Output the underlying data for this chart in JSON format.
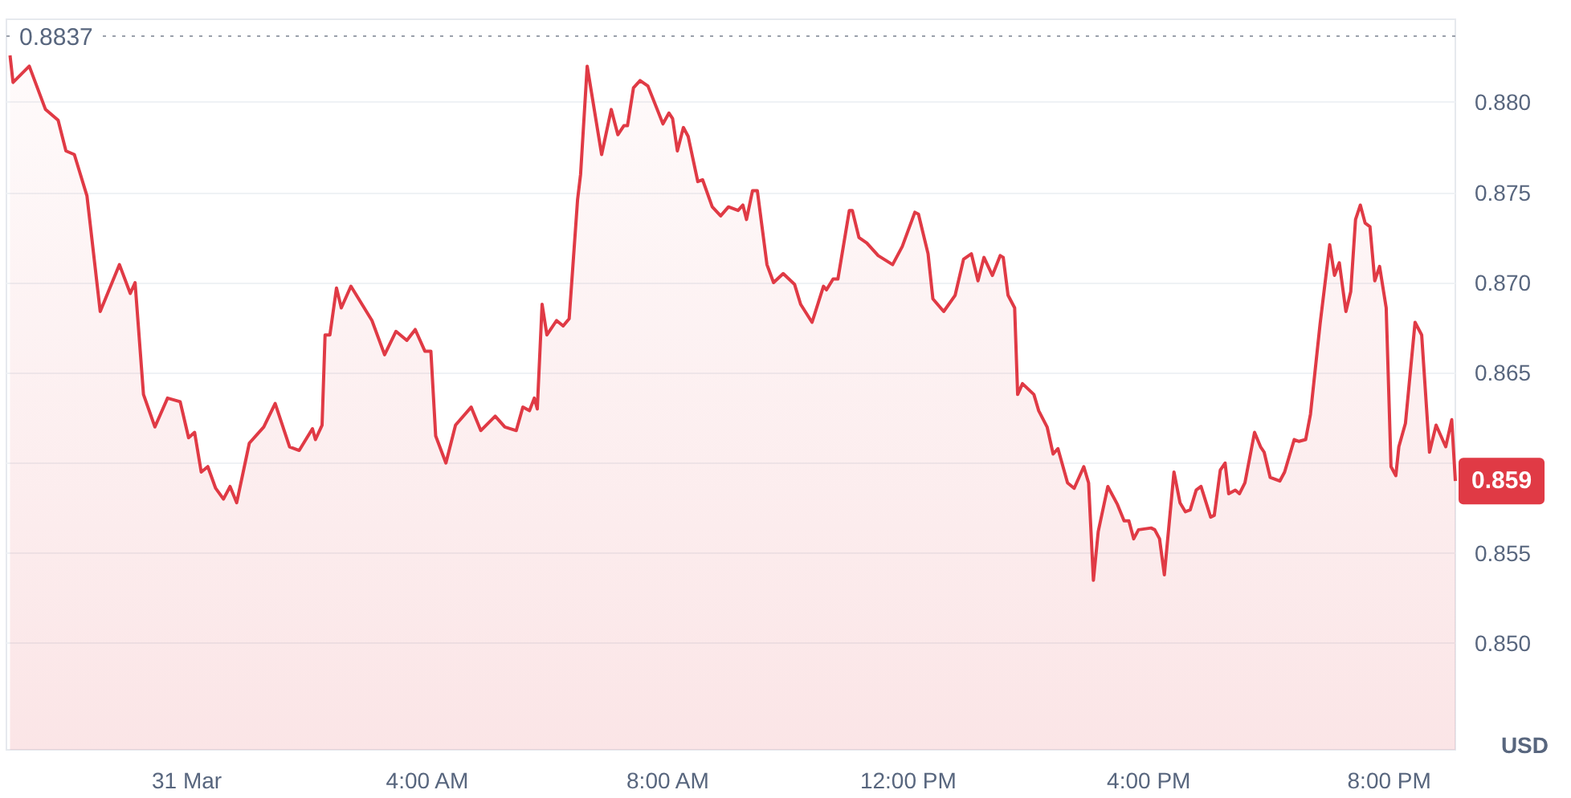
{
  "chart_data": {
    "type": "area",
    "ylabel": "USD",
    "color": "#e03a45",
    "x": [
      -2.94,
      -2.89,
      -2.62,
      -2.35,
      -2.14,
      -2.01,
      -1.87,
      -1.66,
      -1.44,
      -1.12,
      -0.94,
      -0.86,
      -0.72,
      -0.53,
      -0.32,
      -0.11,
      0.03,
      0.13,
      0.24,
      0.35,
      0.48,
      0.61,
      0.72,
      0.83,
      1.04,
      1.28,
      1.47,
      1.71,
      1.87,
      2.09,
      2.14,
      2.25,
      2.3,
      2.38,
      2.49,
      2.57,
      2.73,
      3.08,
      3.29,
      3.48,
      3.66,
      3.8,
      3.96,
      4.06,
      4.14,
      4.31,
      4.47,
      4.73,
      4.89,
      5.13,
      5.29,
      5.48,
      5.59,
      5.7,
      5.78,
      5.83,
      5.91,
      5.99,
      6.15,
      6.26,
      6.36,
      6.5,
      6.55,
      6.66,
      6.9,
      7.06,
      7.17,
      7.27,
      7.33,
      7.43,
      7.54,
      7.67,
      7.92,
      8.02,
      8.08,
      8.16,
      8.26,
      8.34,
      8.5,
      8.58,
      8.74,
      8.88,
      9.01,
      9.17,
      9.25,
      9.31,
      9.41,
      9.49,
      9.65,
      9.76,
      9.92,
      10.11,
      10.21,
      10.4,
      10.59,
      10.64,
      10.75,
      10.83,
      11.02,
      11.07,
      11.18,
      11.31,
      11.5,
      11.74,
      11.9,
      12.11,
      12.17,
      12.33,
      12.41,
      12.59,
      12.78,
      12.92,
      13.05,
      13.16,
      13.26,
      13.4,
      13.53,
      13.58,
      13.66,
      13.77,
      13.82,
      13.9,
      14.09,
      14.17,
      14.31,
      14.41,
      14.49,
      14.65,
      14.76,
      14.92,
      15.0,
      15.08,
      15.16,
      15.32,
      15.48,
      15.59,
      15.67,
      15.75,
      15.83,
      16.04,
      16.1,
      16.18,
      16.26,
      16.42,
      16.52,
      16.61,
      16.69,
      16.79,
      16.87,
      17.03,
      17.09,
      17.19,
      17.27,
      17.33,
      17.44,
      17.51,
      17.6,
      17.76,
      17.86,
      17.92,
      18.02,
      18.18,
      18.26,
      18.42,
      18.5,
      18.61,
      18.69,
      18.85,
      19.01,
      19.09,
      19.17,
      19.28,
      19.36,
      19.44,
      19.52,
      19.6,
      19.68,
      19.76,
      19.84,
      19.95,
      20.03,
      20.11,
      20.16,
      20.27,
      20.43,
      20.54,
      20.67,
      20.78,
      20.94,
      21.04,
      21.1
    ],
    "values": [
      0.8826,
      0.8811,
      0.882,
      0.8796,
      0.879,
      0.8773,
      0.8771,
      0.8748,
      0.8684,
      0.871,
      0.8694,
      0.87,
      0.8638,
      0.862,
      0.8636,
      0.8634,
      0.8614,
      0.8617,
      0.8595,
      0.8598,
      0.8586,
      0.858,
      0.8587,
      0.8578,
      0.8611,
      0.862,
      0.8633,
      0.8609,
      0.8607,
      0.8619,
      0.8613,
      0.8621,
      0.8671,
      0.8671,
      0.8697,
      0.8686,
      0.8698,
      0.8679,
      0.866,
      0.8673,
      0.8668,
      0.8674,
      0.8662,
      0.8662,
      0.8615,
      0.86,
      0.8621,
      0.8631,
      0.8618,
      0.8626,
      0.862,
      0.8618,
      0.8631,
      0.8629,
      0.8636,
      0.863,
      0.8688,
      0.8671,
      0.8679,
      0.8676,
      0.868,
      0.8746,
      0.876,
      0.882,
      0.8771,
      0.8796,
      0.8782,
      0.8787,
      0.8787,
      0.8808,
      0.8812,
      0.8809,
      0.8788,
      0.8794,
      0.8791,
      0.8773,
      0.8786,
      0.8781,
      0.8756,
      0.8757,
      0.8742,
      0.8737,
      0.8742,
      0.874,
      0.8743,
      0.8735,
      0.8751,
      0.8751,
      0.871,
      0.87,
      0.8705,
      0.8699,
      0.8688,
      0.8678,
      0.8698,
      0.8696,
      0.8702,
      0.8702,
      0.874,
      0.874,
      0.8725,
      0.8722,
      0.8715,
      0.871,
      0.872,
      0.8739,
      0.8738,
      0.8716,
      0.8691,
      0.8684,
      0.8693,
      0.8713,
      0.8716,
      0.8701,
      0.8714,
      0.8704,
      0.8715,
      0.8714,
      0.8693,
      0.8686,
      0.8638,
      0.8644,
      0.8638,
      0.8629,
      0.862,
      0.8605,
      0.8608,
      0.8589,
      0.8586,
      0.8598,
      0.8589,
      0.8535,
      0.8562,
      0.8587,
      0.8577,
      0.8568,
      0.8568,
      0.8558,
      0.8563,
      0.8564,
      0.8563,
      0.8558,
      0.8538,
      0.8595,
      0.8578,
      0.8573,
      0.8574,
      0.8585,
      0.8587,
      0.857,
      0.8571,
      0.8596,
      0.86,
      0.8583,
      0.8585,
      0.8583,
      0.8589,
      0.8617,
      0.8609,
      0.8606,
      0.8592,
      0.859,
      0.8595,
      0.8613,
      0.8612,
      0.8613,
      0.8627,
      0.8677,
      0.8721,
      0.8704,
      0.8711,
      0.8684,
      0.8695,
      0.8735,
      0.8743,
      0.8733,
      0.8731,
      0.8701,
      0.8709,
      0.8686,
      0.8598,
      0.8593,
      0.8609,
      0.8622,
      0.8678,
      0.8671,
      0.8606,
      0.8621,
      0.8609,
      0.8624,
      0.859
    ],
    "xlim": [
      -3.0,
      21.1
    ],
    "xticks": [
      {
        "value": 0,
        "label": "31 Mar"
      },
      {
        "value": 4,
        "label": "4:00 AM"
      },
      {
        "value": 8,
        "label": "8:00 AM"
      },
      {
        "value": 12,
        "label": "12:00 PM"
      },
      {
        "value": 16,
        "label": "4:00 PM"
      },
      {
        "value": 20,
        "label": "8:00 PM"
      }
    ],
    "ylim": [
      0.8441,
      0.8846
    ],
    "yticks": [
      {
        "value": 0.85,
        "label": "0.850"
      },
      {
        "value": 0.855,
        "label": "0.855"
      },
      {
        "value": 0.86,
        "label": null
      },
      {
        "value": 0.865,
        "label": "0.865"
      },
      {
        "value": 0.87,
        "label": "0.870"
      },
      {
        "value": 0.875,
        "label": "0.875"
      },
      {
        "value": 0.88,
        "label": "0.880"
      }
    ],
    "grid": "y",
    "ref_lines": [
      {
        "axis": "y",
        "value": 0.8837,
        "label": "0.8837",
        "line_style": "dotted",
        "color": "#9aa0ab"
      }
    ],
    "annotations": [
      {
        "text": "0.859",
        "x": 21.1,
        "y": 0.859
      }
    ]
  }
}
